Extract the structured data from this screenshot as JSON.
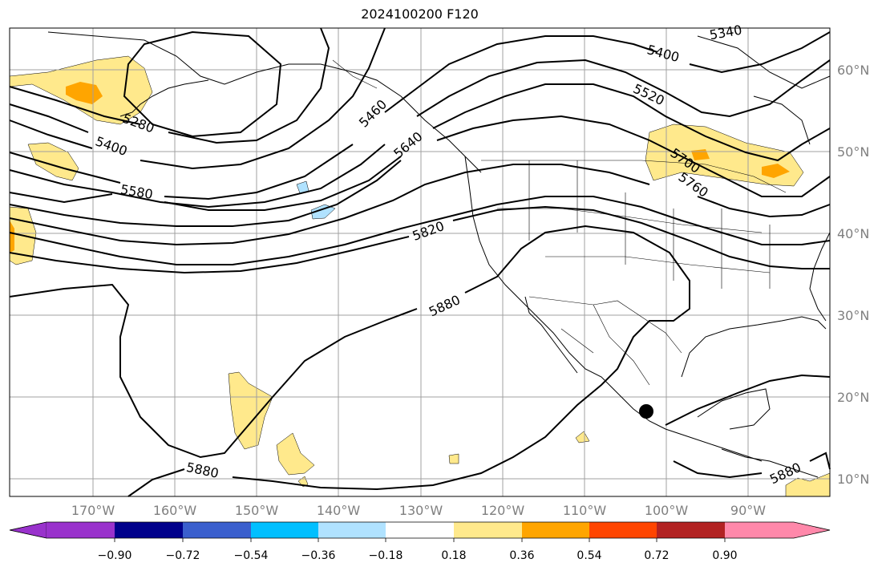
{
  "title": "2024100200 F120",
  "map": {
    "lat_labels": [
      "60°N",
      "50°N",
      "40°N",
      "30°N",
      "20°N",
      "10°N"
    ],
    "lon_labels": [
      "170°W",
      "160°W",
      "150°W",
      "140°W",
      "130°W",
      "120°W",
      "110°W",
      "100°W",
      "90°W"
    ],
    "contour_labels": [
      "5340",
      "5400",
      "5520",
      "5280",
      "5400",
      "5460",
      "5640",
      "5580",
      "5700",
      "5760",
      "5820",
      "5880",
      "5880",
      "5880"
    ],
    "marker": {
      "type": "dot",
      "lat": 18.3,
      "lon": -102.3
    }
  },
  "colorbar": {
    "ticks": [
      "−0.90",
      "−0.72",
      "−0.54",
      "−0.36",
      "−0.18",
      "0.18",
      "0.36",
      "0.54",
      "0.72",
      "0.90"
    ],
    "colors": [
      "#9932cc",
      "#00008b",
      "#3a5fcd",
      "#00bfff",
      "#b0e2ff",
      "#ffffff",
      "#ffe98c",
      "#ffa500",
      "#ff4500",
      "#b22222",
      "#ff88aa"
    ]
  }
}
